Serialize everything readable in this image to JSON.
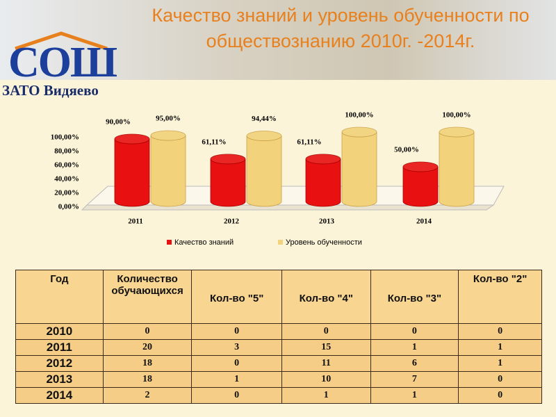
{
  "logo": {
    "text": "СОШ",
    "subtitle": "ЗАТО Видяево"
  },
  "chart_data": {
    "type": "bar",
    "title": "Качество знаний и уровень обученности по обществознанию  2010г. -2014г.",
    "categories": [
      "2011",
      "2012",
      "2013",
      "2014"
    ],
    "series": [
      {
        "name": "Качество знаний",
        "color": "#e81010",
        "values": [
          90,
          61.11,
          61.11,
          50
        ],
        "value_labels": [
          "90,00%",
          "61,11%",
          "61,11%",
          "50,00%"
        ]
      },
      {
        "name": "Уровень обученности",
        "color": "#f2d27a",
        "values": [
          95,
          94.44,
          100,
          100
        ],
        "value_labels": [
          "95,00%",
          "94,44%",
          "100,00%",
          "100,00%"
        ]
      }
    ],
    "ylim": [
      0,
      100
    ],
    "yticks": [
      {
        "value": 0,
        "label": "0,00%"
      },
      {
        "value": 20,
        "label": "20,00%"
      },
      {
        "value": 40,
        "label": "40,00%"
      },
      {
        "value": 60,
        "label": "60,00%"
      },
      {
        "value": 80,
        "label": "80,00%"
      },
      {
        "value": 100,
        "label": "100,00%"
      }
    ],
    "legend": "bottom"
  },
  "table": {
    "header": [
      "Год",
      "Количество обучающихся",
      "Кол-во \"5\"",
      "Кол-во \"4\"",
      "Кол-во \"3\"",
      "Кол-во \"2\""
    ],
    "rows": [
      [
        "2010",
        "0",
        "0",
        "0",
        "0",
        "0"
      ],
      [
        "2011",
        "20",
        "3",
        "15",
        "1",
        "1"
      ],
      [
        "2012",
        "18",
        "0",
        "11",
        "6",
        "1"
      ],
      [
        "2013",
        "18",
        "1",
        "10",
        "7",
        "0"
      ],
      [
        "2014",
        "2",
        "0",
        "1",
        "1",
        "0"
      ]
    ]
  }
}
